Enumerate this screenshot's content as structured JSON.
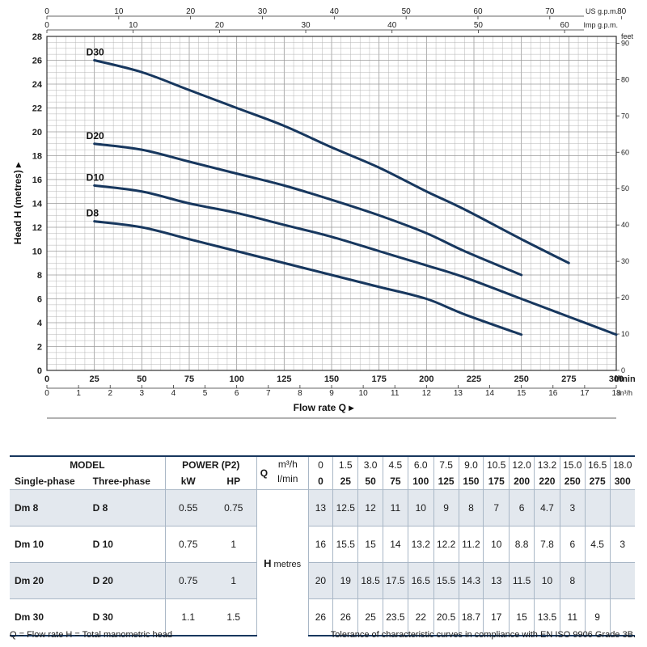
{
  "chart_data": {
    "type": "line",
    "xlabel": "Flow rate  Q",
    "ylabel": "Head H  (metres)",
    "x_unit": "l/min",
    "xlim": [
      0,
      300
    ],
    "ylim": [
      0,
      28
    ],
    "grid": true,
    "x_ticks": [
      "0",
      "25",
      "50",
      "75",
      "100",
      "125",
      "150",
      "175",
      "200",
      "225",
      "250",
      "275",
      "300"
    ],
    "y_ticks": [
      "0",
      "2",
      "4",
      "6",
      "8",
      "10",
      "12",
      "14",
      "16",
      "18",
      "20",
      "22",
      "24",
      "26",
      "28"
    ],
    "m3h_ticks": [
      "0",
      "1",
      "2",
      "3",
      "4",
      "5",
      "6",
      "7",
      "8",
      "9",
      "10",
      "11",
      "12",
      "13",
      "14",
      "15",
      "16",
      "17",
      "18"
    ],
    "m3h_unit": "m³/h",
    "usgpm_ticks": [
      "0",
      "10",
      "20",
      "30",
      "40",
      "50",
      "60",
      "70",
      "80"
    ],
    "usgpm_unit": "US g.p.m.",
    "impgpm_ticks": [
      "0",
      "10",
      "20",
      "30",
      "40",
      "50",
      "60"
    ],
    "impgpm_unit": "Imp g.p.m.",
    "feet_ticks": [
      "0",
      "10",
      "20",
      "30",
      "40",
      "50",
      "60",
      "70",
      "80",
      "90"
    ],
    "feet_unit": "feet",
    "series": [
      {
        "name": "D30",
        "x": [
          25,
          50,
          75,
          100,
          125,
          150,
          175,
          200,
          220,
          250,
          275
        ],
        "y": [
          26,
          25,
          23.5,
          22,
          20.5,
          18.7,
          17,
          15,
          13.5,
          11,
          9
        ]
      },
      {
        "name": "D20",
        "x": [
          25,
          50,
          75,
          100,
          125,
          150,
          175,
          200,
          220,
          250
        ],
        "y": [
          19,
          18.5,
          17.5,
          16.5,
          15.5,
          14.3,
          13,
          11.5,
          10,
          8
        ]
      },
      {
        "name": "D10",
        "x": [
          25,
          50,
          75,
          100,
          125,
          150,
          175,
          200,
          220,
          250,
          275,
          300
        ],
        "y": [
          15.5,
          15,
          14,
          13.2,
          12.2,
          11.2,
          10,
          8.8,
          7.8,
          6,
          4.5,
          3
        ]
      },
      {
        "name": "D8",
        "x": [
          25,
          50,
          75,
          100,
          125,
          150,
          175,
          200,
          220,
          250
        ],
        "y": [
          12.5,
          12,
          11,
          10,
          9,
          8,
          7,
          6,
          4.7,
          3
        ]
      }
    ]
  },
  "table": {
    "model_label": "MODEL",
    "single_phase_label": "Single-phase",
    "three_phase_label": "Three-phase",
    "power_label": "POWER (P2)",
    "kw_label": "kW",
    "hp_label": "HP",
    "q_label": "Q",
    "m3h_label": "m³/h",
    "lmin_label": "l/min",
    "h_label": "H",
    "h_unit": "metres",
    "m3h_values": [
      "0",
      "1.5",
      "3.0",
      "4.5",
      "6.0",
      "7.5",
      "9.0",
      "10.5",
      "12.0",
      "13.2",
      "15.0",
      "16.5",
      "18.0"
    ],
    "lmin_values": [
      "0",
      "25",
      "50",
      "75",
      "100",
      "125",
      "150",
      "175",
      "200",
      "220",
      "250",
      "275",
      "300"
    ],
    "rows": [
      {
        "single": "Dm 8",
        "three": "D 8",
        "kw": "0.55",
        "hp": "0.75",
        "h": [
          "13",
          "12.5",
          "12",
          "11",
          "10",
          "9",
          "8",
          "7",
          "6",
          "4.7",
          "3",
          "",
          ""
        ]
      },
      {
        "single": "Dm 10",
        "three": "D 10",
        "kw": "0.75",
        "hp": "1",
        "h": [
          "16",
          "15.5",
          "15",
          "14",
          "13.2",
          "12.2",
          "11.2",
          "10",
          "8.8",
          "7.8",
          "6",
          "4.5",
          "3"
        ]
      },
      {
        "single": "Dm 20",
        "three": "D 20",
        "kw": "0.75",
        "hp": "1",
        "h": [
          "20",
          "19",
          "18.5",
          "17.5",
          "16.5",
          "15.5",
          "14.3",
          "13",
          "11.5",
          "10",
          "8",
          "",
          ""
        ]
      },
      {
        "single": "Dm 30",
        "three": "D 30",
        "kw": "1.1",
        "hp": "1.5",
        "h": [
          "26",
          "26",
          "25",
          "23.5",
          "22",
          "20.5",
          "18.7",
          "17",
          "15",
          "13.5",
          "11",
          "9",
          ""
        ]
      }
    ]
  },
  "footer": {
    "legend": "Q = Flow rate   H = Total manometric head",
    "tolerance": "Tolerance of characteristic curves in compliance with EN ISO 9906 Grade 3B."
  },
  "colors": {
    "curve": "#17375e",
    "grid": "#b4b4b4",
    "row_shade": "#e3e8ee"
  }
}
